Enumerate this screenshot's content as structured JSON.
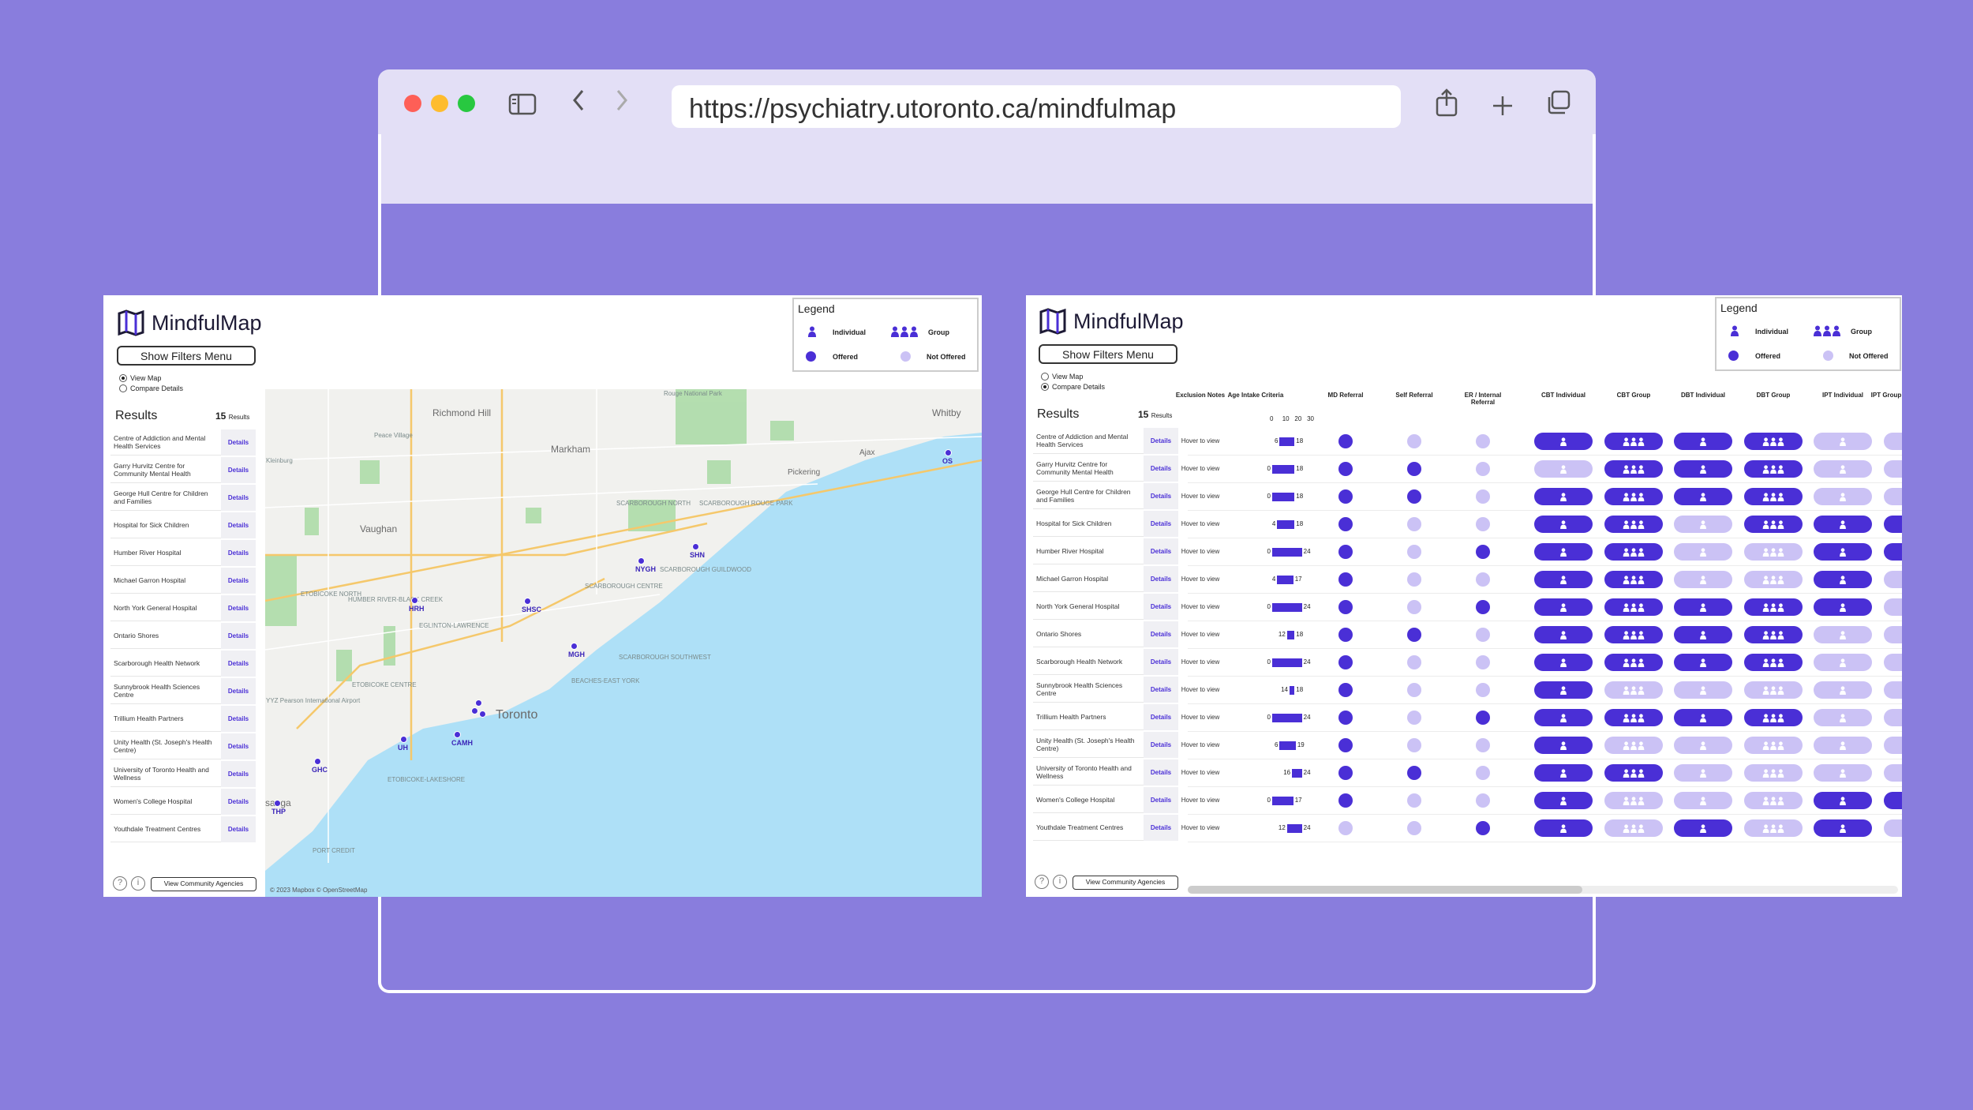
{
  "browser": {
    "url": "https://psychiatry.utoronto.ca/mindfulmap",
    "controls": {
      "sidebar": "sidebar-icon",
      "back": "chevron-left-icon",
      "forward": "chevron-right-icon",
      "share": "share-icon",
      "new_tab": "plus-icon",
      "tabs": "tabs-icon"
    },
    "traffic_colors": [
      "#fe5f57",
      "#febc2e",
      "#28c840"
    ]
  },
  "colors": {
    "offered": "#4a2fd6",
    "not_offered": "#cbc2f5",
    "background": "#897ddd"
  },
  "app": {
    "logo": "MindfulMap",
    "filters_button": "Show Filters Menu",
    "view_map": "View Map",
    "compare_details": "Compare Details",
    "results_label": "Results",
    "results_count": "15",
    "results_suffix": "Results",
    "details_label": "Details",
    "community_button": "View Community Agencies",
    "help_icon": "question-icon",
    "info_icon": "info-icon",
    "legend": {
      "title": "Legend",
      "individual": "Individual",
      "group": "Group",
      "offered": "Offered",
      "not_offered": "Not Offered"
    }
  },
  "results": [
    "Centre of Addiction and Mental Health Services",
    "Garry Hurvitz Centre for Community Mental Health",
    "George Hull Centre for Children and Families",
    "Hospital for Sick Children",
    "Humber River Hospital",
    "Michael Garron Hospital",
    "North York General Hospital",
    "Ontario Shores",
    "Scarborough Health Network",
    "Sunnybrook Health Sciences Centre",
    "Trillium Health Partners",
    "Unity Health (St. Joseph's Health Centre)",
    "University of Toronto Health and Wellness",
    "Women's College Hospital",
    "Youthdale Treatment Centres"
  ],
  "map": {
    "places": [
      "Richmond Hill",
      "Markham",
      "Whitby",
      "Vaughan",
      "Pickering",
      "Ajax",
      "Toronto",
      "sauga"
    ],
    "small_places": [
      "Rouge National Park",
      "Peace Village",
      "Kleinburg",
      "SCARBOROUGH NORTH",
      "SCARBOROUGH ROUGE PARK",
      "SCARBOROUGH GUILDWOOD",
      "SCARBOROUGH CENTRE",
      "SCARBOROUGH SOUTHWEST",
      "BEACHES-EAST YORK",
      "ETOBICOKE NORTH",
      "HUMBER RIVER-BLACK CREEK",
      "EGLINTON-LAWRENCE",
      "ETOBICOKE CENTRE",
      "ETOBICOKE-LAKESHORE",
      "YYZ Pearson International Airport",
      "PORT CREDIT"
    ],
    "attribution": "© 2023 Mapbox © OpenStreetMap",
    "markers": [
      {
        "label": "OS"
      },
      {
        "label": "SHN"
      },
      {
        "label": "NYGH"
      },
      {
        "label": "HRH"
      },
      {
        "label": "SHSC"
      },
      {
        "label": "MGH"
      },
      {
        "label": "UH"
      },
      {
        "label": "CAMH"
      },
      {
        "label": "THP"
      },
      {
        "label": "GHC"
      },
      {
        "label": ""
      },
      {
        "label": ""
      },
      {
        "label": ""
      }
    ]
  },
  "table": {
    "headers": [
      "Exclusion Notes",
      "Age Intake Criteria",
      "MD Referral",
      "Self Referral",
      "ER / Internal Referral",
      "CBT Individual",
      "CBT Group",
      "DBT Individual",
      "DBT Group",
      "IPT Individual",
      "IPT Group"
    ],
    "age_ticks": [
      "0",
      "10",
      "20",
      "30"
    ],
    "hover_text": "Hover to view",
    "rows": [
      {
        "min": "6",
        "max": "18",
        "min_v": 6,
        "max_v": 18,
        "md": 1,
        "self": 0,
        "er": 0,
        "cbt_i": 1,
        "cbt_g": 1,
        "dbt_i": 1,
        "dbt_g": 1,
        "ipt_i": 0,
        "ipt_g": 0
      },
      {
        "min": "0",
        "max": "18",
        "min_v": 0,
        "max_v": 18,
        "md": 1,
        "self": 1,
        "er": 0,
        "cbt_i": 0,
        "cbt_g": 1,
        "dbt_i": 1,
        "dbt_g": 1,
        "ipt_i": 0,
        "ipt_g": 0
      },
      {
        "min": "0",
        "max": "18",
        "min_v": 0,
        "max_v": 18,
        "md": 1,
        "self": 1,
        "er": 0,
        "cbt_i": 1,
        "cbt_g": 1,
        "dbt_i": 1,
        "dbt_g": 1,
        "ipt_i": 0,
        "ipt_g": 0
      },
      {
        "min": "4",
        "max": "18",
        "min_v": 4,
        "max_v": 18,
        "md": 1,
        "self": 0,
        "er": 0,
        "cbt_i": 1,
        "cbt_g": 1,
        "dbt_i": 0,
        "dbt_g": 1,
        "ipt_i": 1,
        "ipt_g": 1
      },
      {
        "min": "0",
        "max": "24",
        "min_v": 0,
        "max_v": 24,
        "md": 1,
        "self": 0,
        "er": 1,
        "cbt_i": 1,
        "cbt_g": 1,
        "dbt_i": 0,
        "dbt_g": 0,
        "ipt_i": 1,
        "ipt_g": 1
      },
      {
        "min": "4",
        "max": "17",
        "min_v": 4,
        "max_v": 17,
        "md": 1,
        "self": 0,
        "er": 0,
        "cbt_i": 1,
        "cbt_g": 1,
        "dbt_i": 0,
        "dbt_g": 0,
        "ipt_i": 1,
        "ipt_g": 0
      },
      {
        "min": "0",
        "max": "24",
        "min_v": 0,
        "max_v": 24,
        "md": 1,
        "self": 0,
        "er": 1,
        "cbt_i": 1,
        "cbt_g": 1,
        "dbt_i": 1,
        "dbt_g": 1,
        "ipt_i": 1,
        "ipt_g": 0
      },
      {
        "min": "12",
        "max": "18",
        "min_v": 12,
        "max_v": 18,
        "md": 1,
        "self": 1,
        "er": 0,
        "cbt_i": 1,
        "cbt_g": 1,
        "dbt_i": 1,
        "dbt_g": 1,
        "ipt_i": 0,
        "ipt_g": 0
      },
      {
        "min": "0",
        "max": "24",
        "min_v": 0,
        "max_v": 24,
        "md": 1,
        "self": 0,
        "er": 0,
        "cbt_i": 1,
        "cbt_g": 1,
        "dbt_i": 1,
        "dbt_g": 1,
        "ipt_i": 0,
        "ipt_g": 0
      },
      {
        "min": "14",
        "max": "18",
        "min_v": 14,
        "max_v": 18,
        "md": 1,
        "self": 0,
        "er": 0,
        "cbt_i": 1,
        "cbt_g": 0,
        "dbt_i": 0,
        "dbt_g": 0,
        "ipt_i": 0,
        "ipt_g": 0
      },
      {
        "min": "0",
        "max": "24",
        "min_v": 0,
        "max_v": 24,
        "md": 1,
        "self": 0,
        "er": 1,
        "cbt_i": 1,
        "cbt_g": 1,
        "dbt_i": 1,
        "dbt_g": 1,
        "ipt_i": 0,
        "ipt_g": 0
      },
      {
        "min": "6",
        "max": "19",
        "min_v": 6,
        "max_v": 19,
        "md": 1,
        "self": 0,
        "er": 0,
        "cbt_i": 1,
        "cbt_g": 0,
        "dbt_i": 0,
        "dbt_g": 0,
        "ipt_i": 0,
        "ipt_g": 0
      },
      {
        "min": "16",
        "max": "24",
        "min_v": 16,
        "max_v": 24,
        "md": 1,
        "self": 1,
        "er": 0,
        "cbt_i": 1,
        "cbt_g": 1,
        "dbt_i": 0,
        "dbt_g": 0,
        "ipt_i": 0,
        "ipt_g": 0
      },
      {
        "min": "0",
        "max": "17",
        "min_v": 0,
        "max_v": 17,
        "md": 1,
        "self": 0,
        "er": 0,
        "cbt_i": 1,
        "cbt_g": 0,
        "dbt_i": 0,
        "dbt_g": 0,
        "ipt_i": 1,
        "ipt_g": 1
      },
      {
        "min": "12",
        "max": "24",
        "min_v": 12,
        "max_v": 24,
        "md": 0,
        "self": 0,
        "er": 1,
        "cbt_i": 1,
        "cbt_g": 0,
        "dbt_i": 1,
        "dbt_g": 0,
        "ipt_i": 1,
        "ipt_g": 0
      }
    ]
  }
}
